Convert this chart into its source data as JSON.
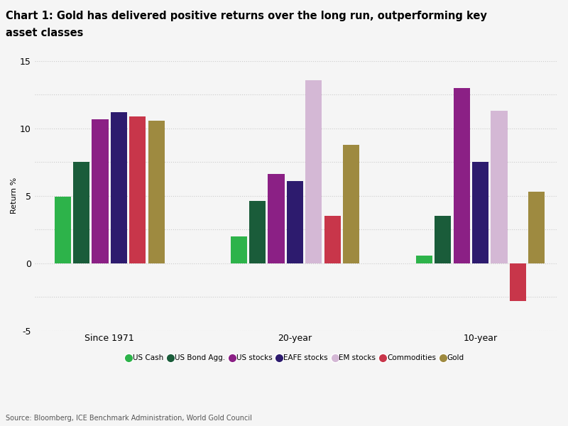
{
  "title_line1": "Chart 1: Gold has delivered positive returns over the long run, outperforming key",
  "title_line2": "asset classes",
  "ylabel": "Return %",
  "groups": [
    "Since 1971",
    "20-year",
    "10-year"
  ],
  "categories": [
    "US Cash",
    "US Bond Agg.",
    "US stocks",
    "EAFE stocks",
    "EM stocks",
    "Commodities",
    "Gold"
  ],
  "color_map": {
    "US Cash": "#2db34a",
    "US Bond Agg.": "#1a5c3a",
    "US stocks": "#8b2085",
    "EAFE stocks": "#2d1b6e",
    "EM stocks": "#d4b8d5",
    "Commodities": "#c8364a",
    "Gold": "#9e8a40"
  },
  "group_data": {
    "Since 1971": {
      "US Cash": 4.95,
      "US Bond Agg.": 7.5,
      "US stocks": 10.7,
      "EAFE stocks": 11.2,
      "Commodities": 10.9,
      "Gold": 10.55
    },
    "20-year": {
      "US Cash": 2.0,
      "US Bond Agg.": 4.6,
      "US stocks": 6.6,
      "EAFE stocks": 6.1,
      "EM stocks": 13.6,
      "Commodities": 3.5,
      "Gold": 8.8
    },
    "10-year": {
      "US Cash": 0.55,
      "US Bond Agg.": 3.5,
      "US stocks": 13.0,
      "EAFE stocks": 7.5,
      "EM stocks": 11.3,
      "Commodities": -2.8,
      "Gold": 5.3
    }
  },
  "ylim": [
    -5,
    15
  ],
  "ytick_vals": [
    -5,
    -2.5,
    0,
    2.5,
    5,
    7.5,
    10,
    12.5,
    15
  ],
  "ytick_labels": [
    "-5",
    "",
    "0",
    "",
    "5",
    "",
    "10",
    "",
    "15"
  ],
  "group_centers": [
    0.38,
    1.32,
    2.26
  ],
  "bar_width": 0.095,
  "source": "Source: Bloomberg, ICE Benchmark Administration, World Gold Council",
  "background_color": "#f5f5f5",
  "grid_color": "#cccccc"
}
